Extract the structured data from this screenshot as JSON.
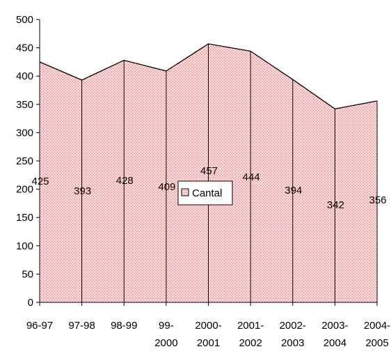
{
  "chart_data": {
    "type": "area",
    "categories": [
      [
        "96-97"
      ],
      [
        "97-98"
      ],
      [
        "98-99"
      ],
      [
        "99-",
        "2000"
      ],
      [
        "2000-",
        "2001"
      ],
      [
        "2001-",
        "2002"
      ],
      [
        "2002-",
        "2003"
      ],
      [
        "2003-",
        "2004"
      ],
      [
        "2004-",
        "2005"
      ]
    ],
    "series": [
      {
        "name": "Cantal",
        "values": [
          425,
          393,
          428,
          409,
          457,
          444,
          394,
          342,
          356
        ]
      }
    ],
    "ylim": [
      0,
      500
    ],
    "yticks": [
      0,
      50,
      100,
      150,
      200,
      250,
      300,
      350,
      400,
      450,
      500
    ],
    "grid": false,
    "legend": "center",
    "colors": {
      "fill": "#ffd4d4",
      "dots": "#e07070",
      "line": "#000000"
    }
  }
}
